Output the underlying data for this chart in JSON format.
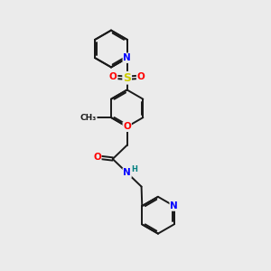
{
  "bg_color": "#ebebeb",
  "bond_color": "#1a1a1a",
  "bond_width": 1.4,
  "atom_colors": {
    "N": "#0000ff",
    "O": "#ff0000",
    "S": "#cccc00",
    "H": "#008080"
  },
  "fs": 7.5,
  "fs_small": 6.5
}
